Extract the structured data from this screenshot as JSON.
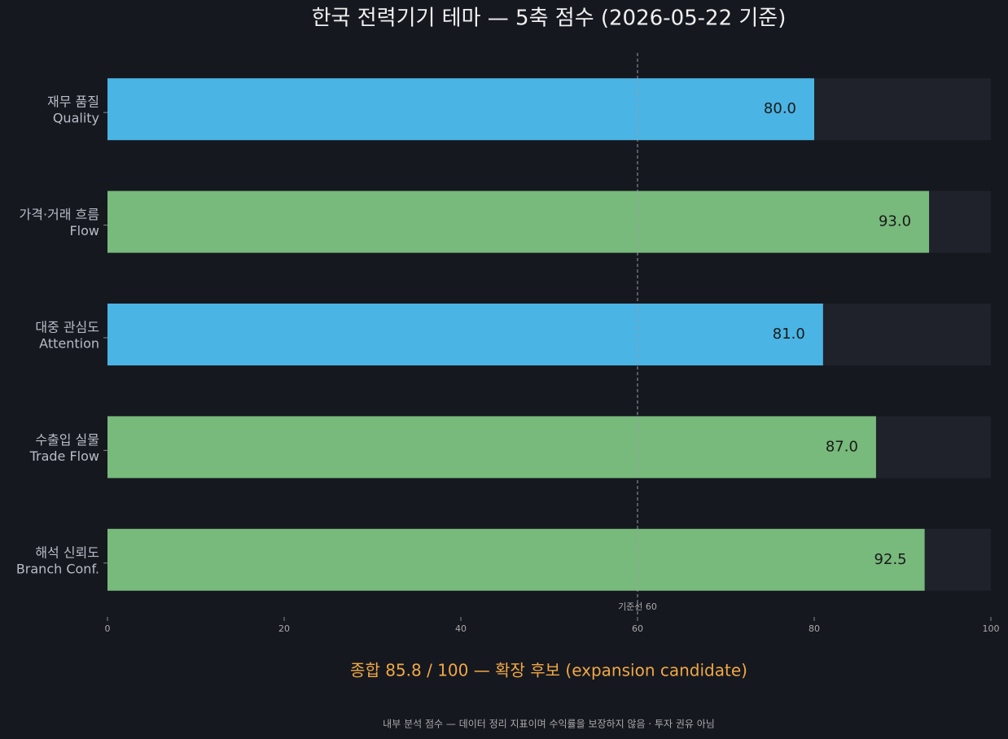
{
  "chart_data": {
    "type": "barh",
    "title": "한국 전력기기 테마 — 5축 점수 (2026-05-22 기준)",
    "categories": [
      [
        "재무 품질",
        "Quality"
      ],
      [
        "가격·거래 흐름",
        "Flow"
      ],
      [
        "대중 관심도",
        "Attention"
      ],
      [
        "수출입 실물",
        "Trade Flow"
      ],
      [
        "해석 신뢰도",
        "Branch Conf."
      ]
    ],
    "values": [
      80.0,
      93.0,
      81.0,
      87.0,
      92.5
    ],
    "value_labels": [
      "80.0",
      "93.0",
      "81.0",
      "87.0",
      "92.5"
    ],
    "colors": [
      "#4ab4e4",
      "#78b97c",
      "#4ab4e4",
      "#78b97c",
      "#78b97c"
    ],
    "track_color": "#1f222b",
    "xlim": [
      0,
      100
    ],
    "xticks": [
      0,
      20,
      40,
      60,
      80,
      100
    ],
    "reference_line": {
      "value": 60,
      "label": "기준선 60"
    },
    "annotation": "종합 85.8 / 100 — 확장 후보 (expansion candidate)",
    "footnote": "내부 분석 점수 — 데이터 정리 지표이며 수익률을 보장하지 않음 · 투자 권유 아님"
  }
}
